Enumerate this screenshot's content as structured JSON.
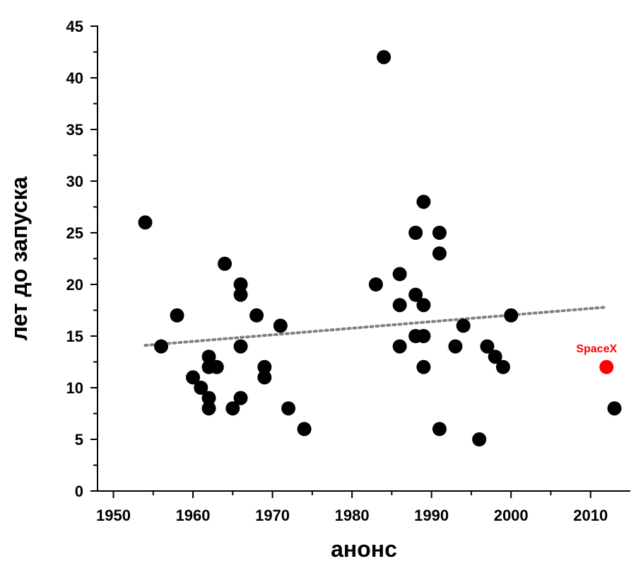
{
  "chart_data": {
    "type": "scatter",
    "xlabel": "анонс",
    "ylabel": "лет до запуска",
    "xlim": [
      1948,
      2015
    ],
    "ylim": [
      0,
      45
    ],
    "x_ticks": [
      1950,
      1960,
      1970,
      1980,
      1990,
      2000,
      2010
    ],
    "y_ticks": [
      0,
      5,
      10,
      15,
      20,
      25,
      30,
      35,
      40,
      45
    ],
    "grid": false,
    "legend": "none",
    "colors": {
      "points": "#000000",
      "highlight": "#ff0000",
      "trend": "#808080"
    },
    "points": [
      [
        1954,
        26
      ],
      [
        1956,
        14
      ],
      [
        1958,
        17
      ],
      [
        1960,
        11
      ],
      [
        1961,
        10
      ],
      [
        1962,
        13
      ],
      [
        1962,
        12
      ],
      [
        1962,
        9
      ],
      [
        1962,
        8
      ],
      [
        1963,
        12
      ],
      [
        1964,
        22
      ],
      [
        1965,
        8
      ],
      [
        1966,
        20
      ],
      [
        1966,
        19
      ],
      [
        1966,
        14
      ],
      [
        1966,
        9
      ],
      [
        1968,
        17
      ],
      [
        1969,
        12
      ],
      [
        1969,
        11
      ],
      [
        1971,
        16
      ],
      [
        1972,
        8
      ],
      [
        1974,
        6
      ],
      [
        1983,
        20
      ],
      [
        1984,
        42
      ],
      [
        1986,
        21
      ],
      [
        1986,
        18
      ],
      [
        1986,
        14
      ],
      [
        1988,
        25
      ],
      [
        1988,
        19
      ],
      [
        1988,
        15
      ],
      [
        1989,
        28
      ],
      [
        1989,
        18
      ],
      [
        1989,
        15
      ],
      [
        1989,
        12
      ],
      [
        1991,
        25
      ],
      [
        1991,
        23
      ],
      [
        1991,
        6
      ],
      [
        1993,
        14
      ],
      [
        1994,
        16
      ],
      [
        1996,
        5
      ],
      [
        1997,
        14
      ],
      [
        1998,
        13
      ],
      [
        1999,
        12
      ],
      [
        2000,
        17
      ],
      [
        2013,
        8
      ]
    ],
    "highlight": {
      "label": "SpaceX",
      "x": 2012,
      "y": 12
    },
    "trendline": {
      "x": [
        1954,
        2012
      ],
      "y": [
        14.1,
        17.8
      ],
      "style": "dotted"
    }
  }
}
